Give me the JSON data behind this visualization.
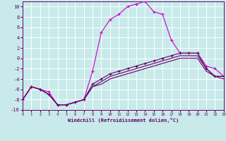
{
  "xlabel": "Windchill (Refroidissement éolien,°C)",
  "xlim": [
    0,
    23
  ],
  "ylim": [
    -10,
    11
  ],
  "xticks": [
    0,
    1,
    2,
    3,
    4,
    5,
    6,
    7,
    8,
    9,
    10,
    11,
    12,
    13,
    14,
    15,
    16,
    17,
    18,
    19,
    20,
    21,
    22,
    23
  ],
  "yticks": [
    -10,
    -8,
    -6,
    -4,
    -2,
    0,
    2,
    4,
    6,
    8,
    10
  ],
  "background_color": "#c8eaea",
  "grid_color": "#aadddd",
  "line_color_bright": "#cc00cc",
  "line_color_dark": "#660066",
  "lines": [
    {
      "x": [
        0,
        1,
        2,
        3,
        4,
        5,
        6,
        7,
        8,
        9,
        10,
        11,
        12,
        13,
        14,
        15,
        16,
        17,
        18,
        19,
        20,
        21,
        22,
        23
      ],
      "y": [
        -8,
        -5.5,
        -6,
        -6.5,
        -9,
        -9,
        -8.5,
        -8,
        -2.5,
        5,
        7.5,
        8.5,
        10,
        10.5,
        11,
        9,
        8.5,
        3.5,
        1,
        1,
        1,
        -1.5,
        -2,
        -3.5
      ],
      "color": "#cc00cc",
      "marker": "+"
    },
    {
      "x": [
        0,
        1,
        2,
        3,
        4,
        5,
        6,
        7,
        8,
        9,
        10,
        11,
        12,
        13,
        14,
        15,
        16,
        17,
        18,
        19,
        20,
        21,
        22,
        23
      ],
      "y": [
        -8,
        -5.5,
        -6,
        -7,
        -9,
        -9,
        -8.5,
        -8,
        -5,
        -4,
        -3,
        -2.5,
        -2,
        -1.5,
        -1,
        -0.5,
        0,
        0.5,
        1,
        1,
        1,
        -2,
        -3.5,
        -3.5
      ],
      "color": "#660066",
      "marker": "+"
    },
    {
      "x": [
        0,
        1,
        2,
        3,
        4,
        5,
        6,
        7,
        8,
        9,
        10,
        11,
        12,
        13,
        14,
        15,
        16,
        17,
        18,
        19,
        20,
        21,
        22,
        23
      ],
      "y": [
        -8,
        -5.5,
        -6,
        -7,
        -9,
        -9,
        -8.5,
        -8,
        -5.5,
        -4.5,
        -3.5,
        -3,
        -2.5,
        -2,
        -1.5,
        -1,
        -0.5,
        0,
        0.5,
        0.5,
        0.5,
        -2,
        -3.5,
        -3.5
      ],
      "color": "#660066",
      "marker": null
    },
    {
      "x": [
        0,
        1,
        2,
        3,
        4,
        5,
        6,
        7,
        8,
        9,
        10,
        11,
        12,
        13,
        14,
        15,
        16,
        17,
        18,
        19,
        20,
        21,
        22,
        23
      ],
      "y": [
        -8,
        -5.5,
        -6,
        -7,
        -9,
        -9,
        -8.5,
        -8,
        -5.5,
        -5,
        -4,
        -3.5,
        -3,
        -2.5,
        -2,
        -1.5,
        -1,
        -0.5,
        0,
        0,
        0,
        -2.5,
        -3.5,
        -4
      ],
      "color": "#660066",
      "marker": null
    }
  ]
}
